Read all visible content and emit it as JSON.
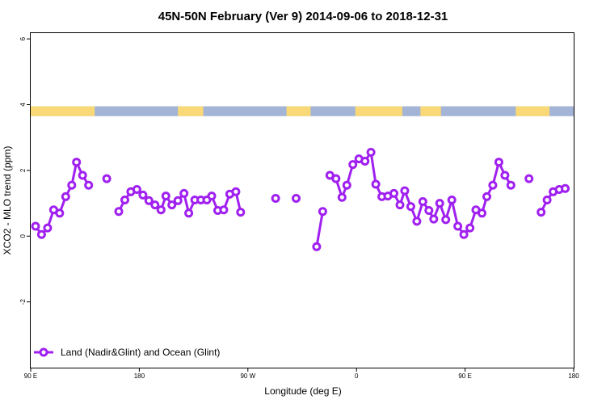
{
  "chart_data": {
    "type": "line",
    "title": "45N-50N February (Ver 9)   2014-09-06 to 2018-12-31",
    "xlabel": "Longitude (deg E)",
    "ylabel": "XCO2 - MLO trend (ppm)",
    "xlim": [
      90,
      540
    ],
    "ylim": [
      -4,
      6.2
    ],
    "x_ticks": [
      {
        "value": 90,
        "label": "90 E"
      },
      {
        "value": 180,
        "label": "180"
      },
      {
        "value": 270,
        "label": "90 W"
      },
      {
        "value": 360,
        "label": "0"
      },
      {
        "value": 450,
        "label": "90 E"
      },
      {
        "value": 540,
        "label": "180"
      }
    ],
    "y_ticks": [
      {
        "value": -2,
        "label": "-2"
      },
      {
        "value": 0,
        "label": "0"
      },
      {
        "value": 2,
        "label": "2"
      },
      {
        "value": 4,
        "label": "4"
      },
      {
        "value": 6,
        "label": "6"
      }
    ],
    "legend": {
      "label": "Land (Nadir&Glint) and Ocean (Glint)",
      "position": "bottom-left"
    },
    "series_color": "#a020f0",
    "land_color": "#f9d977",
    "ocean_color": "#a3b4d6",
    "surface_band": {
      "y_range": [
        3.65,
        3.95
      ],
      "land_segments_deg_east": [
        [
          90,
          143
        ],
        [
          212,
          233
        ],
        [
          302,
          322
        ],
        [
          359,
          398
        ],
        [
          413,
          430
        ],
        [
          492,
          520
        ]
      ]
    },
    "series": [
      {
        "name": "Land (Nadir&Glint) and Ocean (Glint)",
        "segments": [
          [
            [
              94,
              0.3
            ],
            [
              99,
              0.05
            ],
            [
              104,
              0.25
            ],
            [
              109,
              0.8
            ],
            [
              114,
              0.7
            ],
            [
              119,
              1.2
            ],
            [
              124,
              1.55
            ],
            [
              128,
              2.25
            ],
            [
              133,
              1.85
            ],
            [
              138,
              1.55
            ]
          ],
          [
            [
              153,
              1.75
            ]
          ],
          [
            [
              163,
              0.75
            ],
            [
              168,
              1.1
            ],
            [
              173,
              1.35
            ],
            [
              178,
              1.42
            ],
            [
              183,
              1.25
            ],
            [
              188,
              1.08
            ],
            [
              193,
              0.95
            ],
            [
              198,
              0.8
            ],
            [
              202,
              1.22
            ],
            [
              207,
              0.95
            ],
            [
              212,
              1.08
            ],
            [
              217,
              1.3
            ],
            [
              221,
              0.7
            ],
            [
              226,
              1.1
            ],
            [
              231,
              1.1
            ],
            [
              236,
              1.1
            ],
            [
              240,
              1.22
            ],
            [
              245,
              0.78
            ],
            [
              250,
              0.8
            ],
            [
              255,
              1.28
            ],
            [
              260,
              1.35
            ],
            [
              264,
              0.73
            ]
          ],
          [
            [
              293,
              1.15
            ]
          ],
          [
            [
              310,
              1.15
            ]
          ],
          [
            [
              327,
              -0.32
            ],
            [
              332,
              0.75
            ]
          ],
          [
            [
              338,
              1.85
            ],
            [
              343,
              1.75
            ],
            [
              348,
              1.18
            ],
            [
              352,
              1.55
            ],
            [
              357,
              2.18
            ],
            [
              362,
              2.35
            ],
            [
              367,
              2.28
            ],
            [
              372,
              2.55
            ],
            [
              376,
              1.58
            ],
            [
              381,
              1.2
            ],
            [
              386,
              1.22
            ],
            [
              391,
              1.3
            ],
            [
              396,
              0.95
            ],
            [
              400,
              1.38
            ],
            [
              405,
              0.9
            ],
            [
              410,
              0.45
            ],
            [
              415,
              1.05
            ],
            [
              420,
              0.78
            ],
            [
              424,
              0.52
            ],
            [
              429,
              1.0
            ],
            [
              434,
              0.5
            ],
            [
              439,
              1.1
            ],
            [
              444,
              0.3
            ],
            [
              449,
              0.05
            ],
            [
              454,
              0.25
            ],
            [
              459,
              0.8
            ],
            [
              464,
              0.7
            ],
            [
              468,
              1.2
            ],
            [
              473,
              1.55
            ],
            [
              478,
              2.25
            ],
            [
              483,
              1.85
            ],
            [
              488,
              1.55
            ]
          ],
          [
            [
              503,
              1.75
            ]
          ],
          [
            [
              513,
              0.73
            ],
            [
              518,
              1.1
            ],
            [
              523,
              1.35
            ],
            [
              528,
              1.42
            ],
            [
              533,
              1.45
            ]
          ]
        ]
      }
    ]
  }
}
